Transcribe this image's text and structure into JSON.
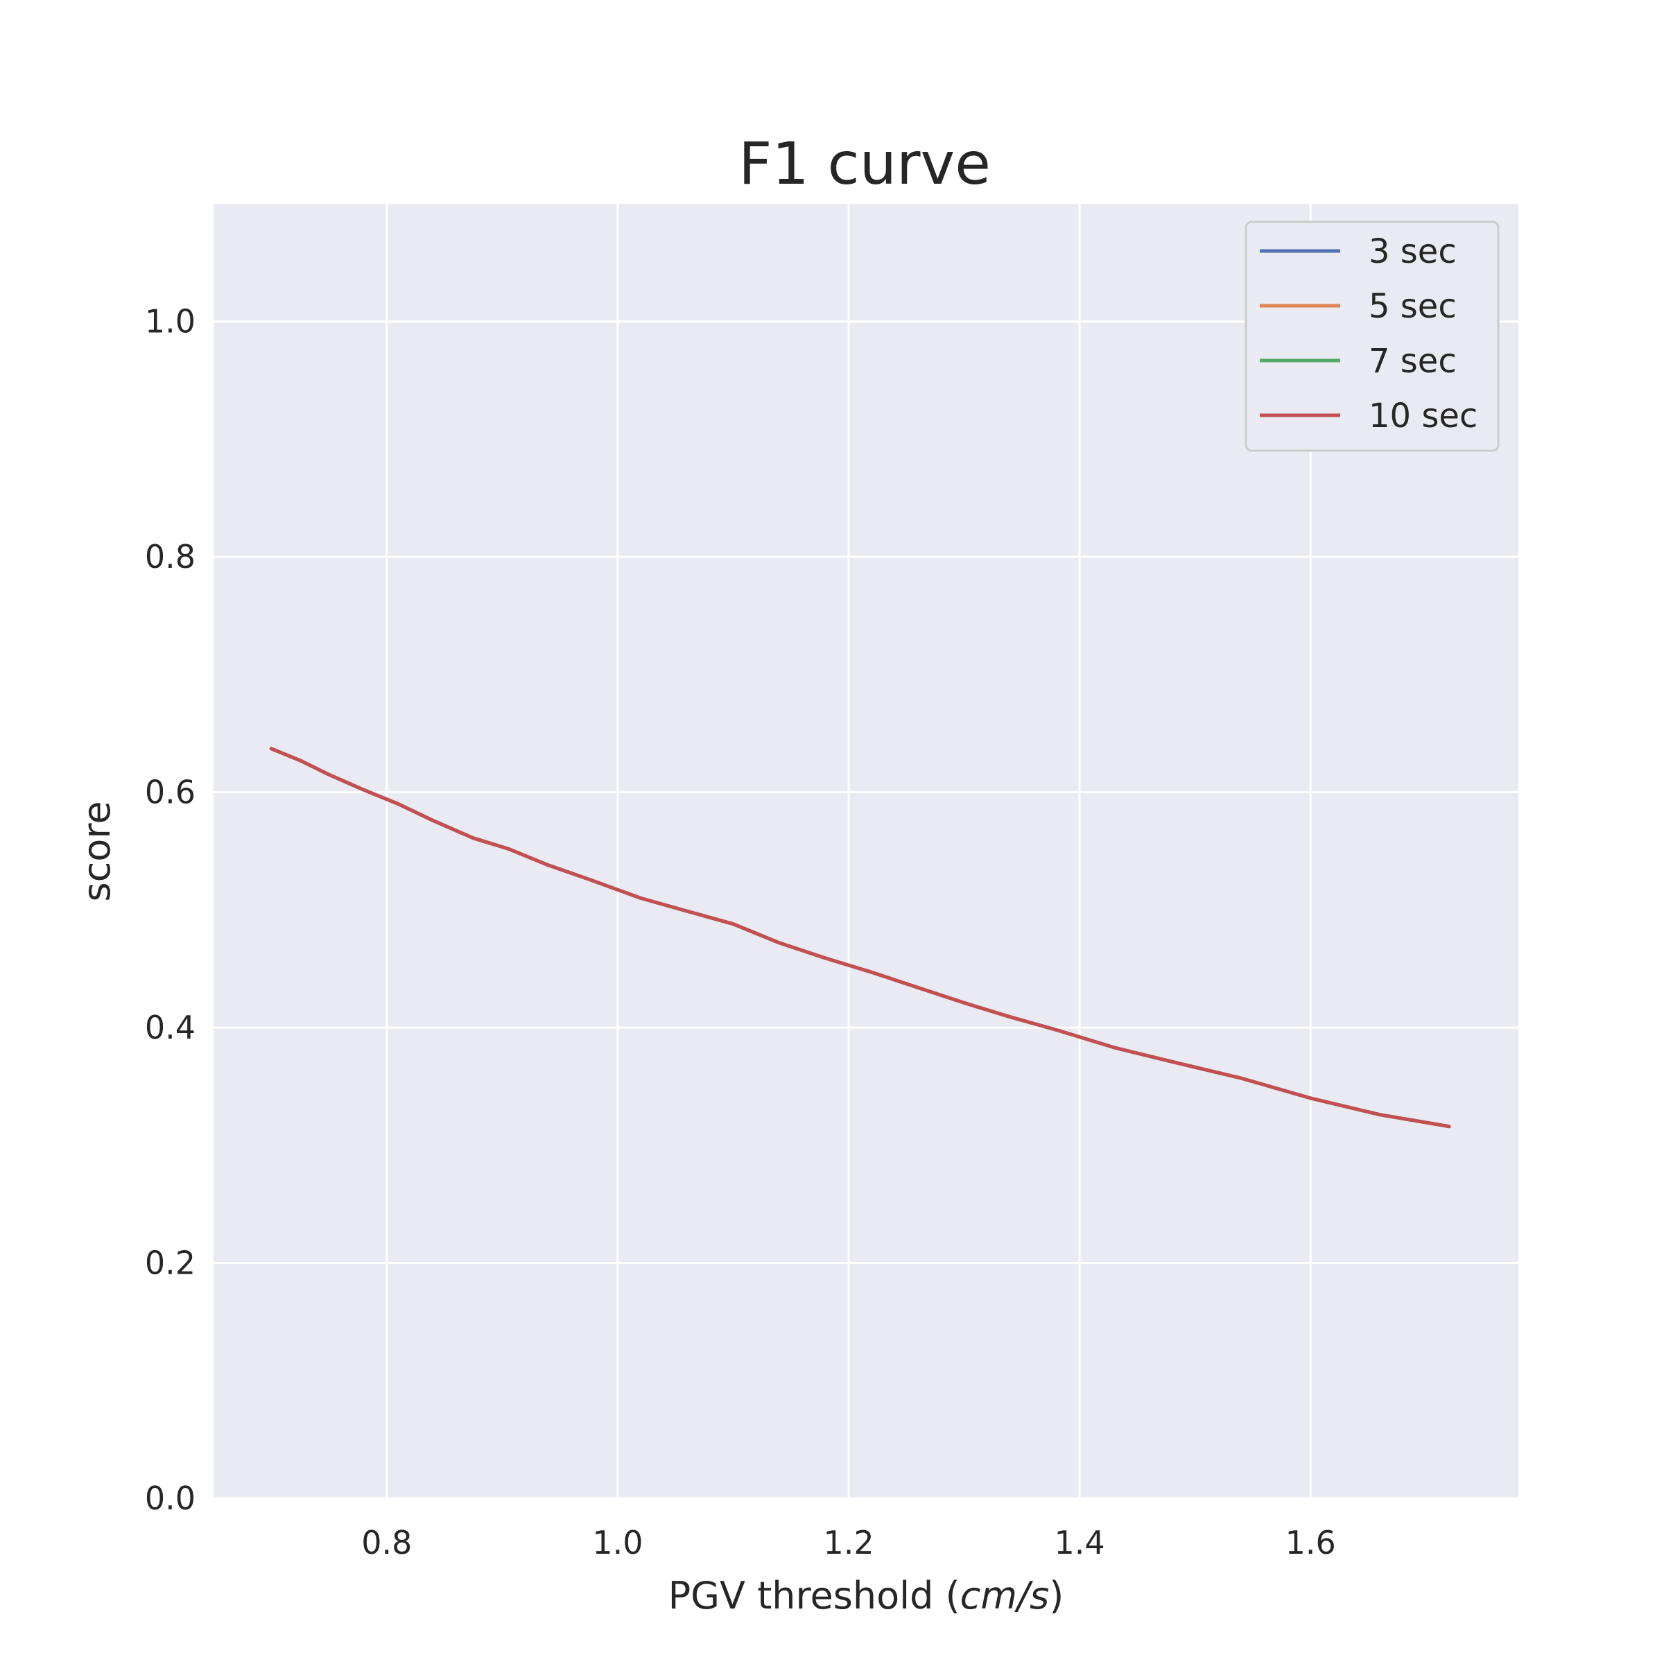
{
  "chart_data": {
    "type": "line",
    "title": "F1 curve",
    "xlabel": "PGV threshold (",
    "xlabel_italic": "cm/s",
    "xlabel_suffix": ")",
    "ylabel": "score",
    "xlim": [
      0.65,
      1.78
    ],
    "ylim": [
      0.0,
      1.1
    ],
    "xticks": [
      0.8,
      1.0,
      1.2,
      1.4,
      1.6
    ],
    "xtick_labels": [
      "0.8",
      "1.0",
      "1.2",
      "1.4",
      "1.6"
    ],
    "yticks": [
      0.0,
      0.2,
      0.4,
      0.6,
      0.8,
      1.0
    ],
    "ytick_labels": [
      "0.0",
      "0.2",
      "0.4",
      "0.6",
      "0.8",
      "1.0"
    ],
    "grid": true,
    "legend_position": "top-right",
    "background_color": "#eaeaf2",
    "x": [
      0.7,
      0.725,
      0.75,
      0.78,
      0.81,
      0.84,
      0.875,
      0.905,
      0.94,
      0.975,
      1.02,
      1.06,
      1.1,
      1.14,
      1.18,
      1.22,
      1.26,
      1.3,
      1.34,
      1.38,
      1.43,
      1.48,
      1.54,
      1.6,
      1.66,
      1.72
    ],
    "series": [
      {
        "name": "3 sec",
        "color": "#4c72b0",
        "values": [
          0.637,
          0.627,
          0.615,
          0.602,
          0.59,
          0.576,
          0.561,
          0.552,
          0.538,
          0.526,
          0.51,
          0.499,
          0.488,
          0.472,
          0.459,
          0.447,
          0.434,
          0.421,
          0.409,
          0.398,
          0.383,
          0.371,
          0.357,
          0.34,
          0.326,
          0.316
        ]
      },
      {
        "name": "5 sec",
        "color": "#dd8452",
        "values": [
          0.637,
          0.627,
          0.615,
          0.602,
          0.59,
          0.576,
          0.561,
          0.552,
          0.538,
          0.526,
          0.51,
          0.499,
          0.488,
          0.472,
          0.459,
          0.447,
          0.434,
          0.421,
          0.409,
          0.398,
          0.383,
          0.371,
          0.357,
          0.34,
          0.326,
          0.316
        ]
      },
      {
        "name": "7 sec",
        "color": "#55a868",
        "values": [
          0.637,
          0.627,
          0.615,
          0.602,
          0.59,
          0.576,
          0.561,
          0.552,
          0.538,
          0.526,
          0.51,
          0.499,
          0.488,
          0.472,
          0.459,
          0.447,
          0.434,
          0.421,
          0.409,
          0.398,
          0.383,
          0.371,
          0.357,
          0.34,
          0.326,
          0.316
        ]
      },
      {
        "name": "10 sec",
        "color": "#c44e52",
        "values": [
          0.637,
          0.627,
          0.615,
          0.602,
          0.59,
          0.576,
          0.561,
          0.552,
          0.538,
          0.526,
          0.51,
          0.499,
          0.488,
          0.472,
          0.459,
          0.447,
          0.434,
          0.421,
          0.409,
          0.398,
          0.383,
          0.371,
          0.357,
          0.34,
          0.326,
          0.316
        ]
      }
    ]
  }
}
